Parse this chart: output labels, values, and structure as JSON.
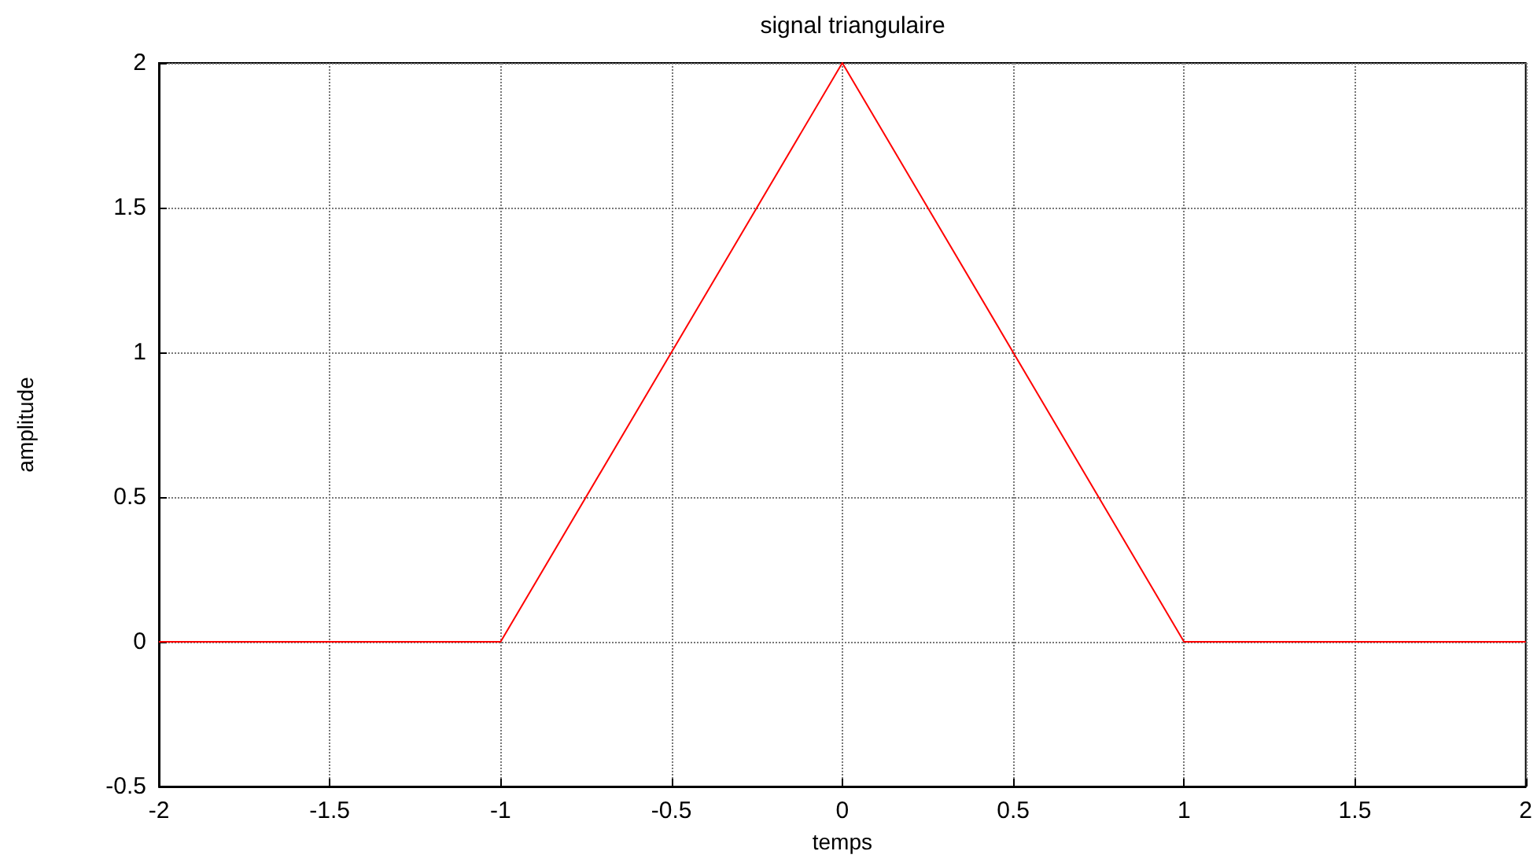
{
  "chart_data": {
    "type": "line",
    "title": "signal triangulaire",
    "xlabel": "temps",
    "ylabel": "amplitude",
    "x": [
      -2,
      -1,
      0,
      1,
      2
    ],
    "series": [
      {
        "color": "#ff0000",
        "values": [
          0,
          0,
          2,
          0,
          0
        ]
      }
    ],
    "xlim": [
      -2,
      2
    ],
    "xticks": [
      -2,
      -1.5,
      -1,
      -0.5,
      0,
      0.5,
      1,
      1.5,
      2
    ],
    "ylim": [
      -0.5,
      2
    ],
    "yticks": [
      -0.5,
      0,
      0.5,
      1,
      1.5,
      2
    ],
    "grid": true,
    "marker": "none",
    "line_style": "solid"
  }
}
